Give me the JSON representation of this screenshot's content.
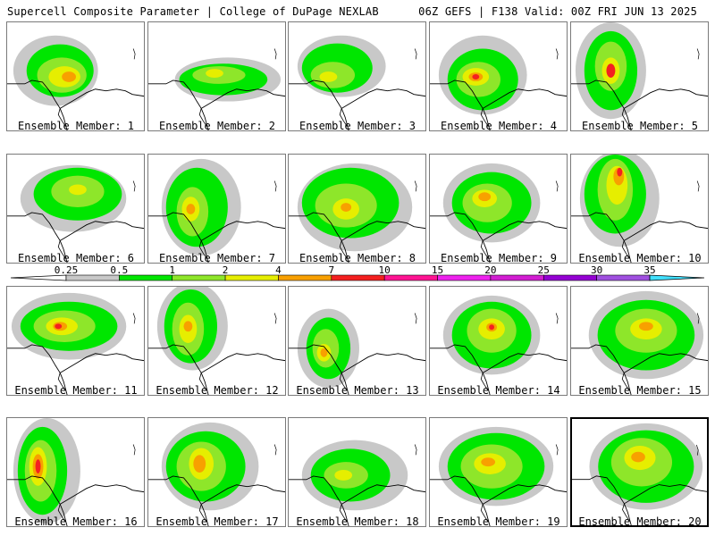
{
  "header": {
    "title": "Supercell Composite Parameter | College of DuPage NEXLAB",
    "run_info": "06Z GEFS | F138 Valid: 00Z FRI JUN 13 2025"
  },
  "members": [
    {
      "label": "Ensemble Member: 1"
    },
    {
      "label": "Ensemble Member: 2"
    },
    {
      "label": "Ensemble Member: 3"
    },
    {
      "label": "Ensemble Member: 4"
    },
    {
      "label": "Ensemble Member: 5"
    },
    {
      "label": "Ensemble Member: 6"
    },
    {
      "label": "Ensemble Member: 7"
    },
    {
      "label": "Ensemble Member: 8"
    },
    {
      "label": "Ensemble Member: 9"
    },
    {
      "label": "Ensemble Member: 10"
    },
    {
      "label": "Ensemble Member: 11"
    },
    {
      "label": "Ensemble Member: 12"
    },
    {
      "label": "Ensemble Member: 13"
    },
    {
      "label": "Ensemble Member: 14"
    },
    {
      "label": "Ensemble Member: 15"
    },
    {
      "label": "Ensemble Member: 16"
    },
    {
      "label": "Ensemble Member: 17"
    },
    {
      "label": "Ensemble Member: 18"
    },
    {
      "label": "Ensemble Member: 19"
    },
    {
      "label": "Ensemble Member: 20"
    }
  ],
  "selected_member": 20,
  "colorbar": {
    "labels": [
      "0.25",
      "0.5",
      "1",
      "2",
      "4",
      "7",
      "10",
      "15",
      "20",
      "25",
      "30",
      "35"
    ],
    "colors": [
      "#c8c8c8",
      "#00e600",
      "#8ee62a",
      "#e6ee00",
      "#f8a000",
      "#f42020",
      "#ff1493",
      "#ee22ee",
      "#d21ed2",
      "#9400d3",
      "#a050e0",
      "#40e0ff"
    ]
  }
}
